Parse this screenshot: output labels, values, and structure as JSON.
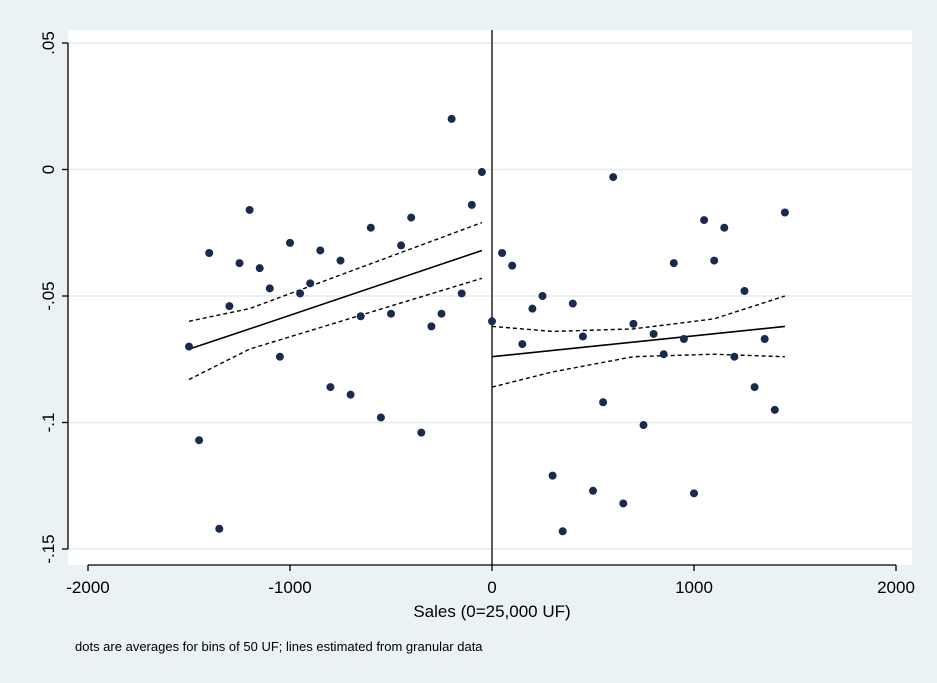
{
  "chart_data": {
    "type": "scatter",
    "xlabel": "Sales (0=25,000 UF)",
    "ylabel": "",
    "note": "dots are averages for bins of 50 UF; lines estimated from granular data",
    "xlim": [
      -2000,
      2000
    ],
    "ylim": [
      -0.15,
      0.05
    ],
    "x_ticks": [
      -2000,
      -1000,
      0,
      1000,
      2000
    ],
    "x_tick_labels": [
      "-2000",
      "-1000",
      "0",
      "1000",
      "2000"
    ],
    "y_ticks": [
      -0.15,
      -0.1,
      -0.05,
      0,
      0.05
    ],
    "y_tick_labels": [
      "-.15",
      "-.1",
      "-.05",
      "0",
      ".05"
    ],
    "grid": "horizontal",
    "cutoff_line_x": 0,
    "colors": {
      "background": "#eaf2f3",
      "plot_area": "#ffffff",
      "grid": "#e2ebed",
      "dots": "#1a2a4f",
      "lines": "#000000"
    },
    "series": [
      {
        "kind": "points",
        "points": [
          [
            -1500,
            -0.07
          ],
          [
            -1450,
            -0.107
          ],
          [
            -1400,
            -0.033
          ],
          [
            -1350,
            -0.142
          ],
          [
            -1300,
            -0.054
          ],
          [
            -1250,
            -0.037
          ],
          [
            -1200,
            -0.016
          ],
          [
            -1150,
            -0.039
          ],
          [
            -1100,
            -0.047
          ],
          [
            -1050,
            -0.074
          ],
          [
            -1000,
            -0.029
          ],
          [
            -950,
            -0.049
          ],
          [
            -900,
            -0.045
          ],
          [
            -850,
            -0.032
          ],
          [
            -800,
            -0.086
          ],
          [
            -750,
            -0.036
          ],
          [
            -700,
            -0.089
          ],
          [
            -650,
            -0.058
          ],
          [
            -600,
            -0.023
          ],
          [
            -550,
            -0.098
          ],
          [
            -500,
            -0.057
          ],
          [
            -450,
            -0.03
          ],
          [
            -400,
            -0.019
          ],
          [
            -350,
            -0.104
          ],
          [
            -300,
            -0.062
          ],
          [
            -250,
            -0.057
          ],
          [
            -200,
            0.02
          ],
          [
            -150,
            -0.049
          ],
          [
            -100,
            -0.014
          ],
          [
            -50,
            -0.001
          ],
          [
            0,
            -0.06
          ],
          [
            50,
            -0.033
          ],
          [
            100,
            -0.038
          ],
          [
            150,
            -0.069
          ],
          [
            200,
            -0.055
          ],
          [
            250,
            -0.05
          ],
          [
            300,
            -0.121
          ],
          [
            350,
            -0.143
          ],
          [
            400,
            -0.053
          ],
          [
            450,
            -0.066
          ],
          [
            500,
            -0.127
          ],
          [
            550,
            -0.092
          ],
          [
            600,
            -0.003
          ],
          [
            650,
            -0.132
          ],
          [
            700,
            -0.061
          ],
          [
            750,
            -0.101
          ],
          [
            800,
            -0.065
          ],
          [
            850,
            -0.073
          ],
          [
            900,
            -0.037
          ],
          [
            950,
            -0.067
          ],
          [
            1000,
            -0.128
          ],
          [
            1050,
            -0.02
          ],
          [
            1100,
            -0.036
          ],
          [
            1150,
            -0.023
          ],
          [
            1200,
            -0.074
          ],
          [
            1250,
            -0.048
          ],
          [
            1300,
            -0.086
          ],
          [
            1350,
            -0.067
          ],
          [
            1400,
            -0.095
          ],
          [
            1450,
            -0.017
          ]
        ]
      },
      {
        "kind": "fit",
        "style": "solid",
        "points": [
          [
            -1500,
            -0.071
          ],
          [
            -1200,
            -0.063
          ],
          [
            -50,
            -0.032
          ]
        ]
      },
      {
        "kind": "ci",
        "style": "dashed",
        "points": [
          [
            -1500,
            -0.06
          ],
          [
            -1200,
            -0.055
          ],
          [
            -50,
            -0.021
          ]
        ]
      },
      {
        "kind": "ci",
        "style": "dashed",
        "points": [
          [
            -1500,
            -0.083
          ],
          [
            -1200,
            -0.071
          ],
          [
            -50,
            -0.043
          ]
        ]
      },
      {
        "kind": "fit",
        "style": "solid",
        "points": [
          [
            0,
            -0.074
          ],
          [
            1450,
            -0.062
          ]
        ]
      },
      {
        "kind": "ci",
        "style": "dashed",
        "points": [
          [
            0,
            -0.062
          ],
          [
            300,
            -0.064
          ],
          [
            700,
            -0.063
          ],
          [
            1100,
            -0.059
          ],
          [
            1450,
            -0.05
          ]
        ]
      },
      {
        "kind": "ci",
        "style": "dashed",
        "points": [
          [
            0,
            -0.086
          ],
          [
            300,
            -0.08
          ],
          [
            700,
            -0.074
          ],
          [
            1100,
            -0.073
          ],
          [
            1450,
            -0.074
          ]
        ]
      }
    ]
  }
}
